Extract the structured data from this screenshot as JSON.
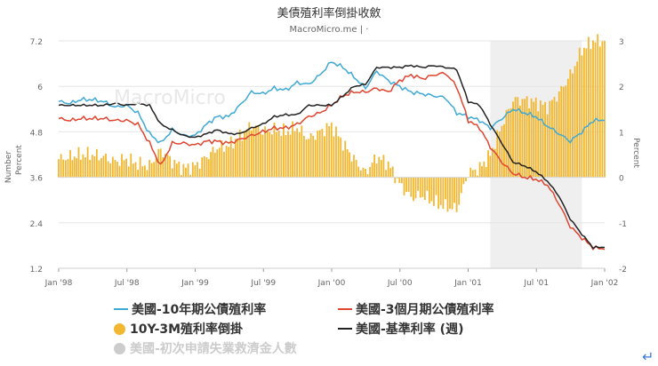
{
  "header": {
    "title": "美債殖利率倒掛收斂",
    "subtitle": "MacroMicro.me | ·",
    "watermark": "MacroMicro"
  },
  "legend": {
    "items": [
      {
        "label": "美國-10年期公債殖利率",
        "color": "#3fa9d5",
        "kind": "line",
        "active": true
      },
      {
        "label": "美國-3個月期公債殖利率",
        "color": "#e0452f",
        "kind": "line",
        "active": true
      },
      {
        "label": "10Y-3M殖利率倒掛",
        "color": "#f2b730",
        "kind": "dot",
        "active": true
      },
      {
        "label": "美國-基準利率 (週)",
        "color": "#222222",
        "kind": "line",
        "active": true
      },
      {
        "label": "美國-初次申請失業救濟金人數",
        "color": "#cccccc",
        "kind": "dot",
        "active": false
      }
    ]
  },
  "chart_data": {
    "type": "line",
    "x_tick_labels": [
      "Jan '98",
      "Jul '98",
      "Jan '99",
      "Jul '99",
      "Jan '00",
      "Jul '00",
      "Jan '01",
      "Jul '01",
      "Jan '02"
    ],
    "left_axis": {
      "labels": [
        "1.2",
        "2.4",
        "3.6",
        "4.8",
        "6",
        "7.2"
      ],
      "title_top": "Number",
      "title_bottom": "Percent",
      "range": [
        1.2,
        7.2
      ]
    },
    "right_axis": {
      "labels": [
        "-2",
        "-1",
        "0",
        "1",
        "2",
        "3"
      ],
      "title": "Percent",
      "range": [
        -2,
        3
      ]
    },
    "shaded_region": {
      "from": "2001-03",
      "to": "2001-11"
    },
    "series": [
      {
        "name": "美國-10年期公債殖利率",
        "axis": "left",
        "color": "#3fa9d5",
        "x": [
          "1998-01",
          "1998-02",
          "1998-03",
          "1998-04",
          "1998-05",
          "1998-06",
          "1998-07",
          "1998-08",
          "1998-09",
          "1998-10",
          "1998-11",
          "1998-12",
          "1999-01",
          "1999-02",
          "1999-03",
          "1999-04",
          "1999-05",
          "1999-06",
          "1999-07",
          "1999-08",
          "1999-09",
          "1999-10",
          "1999-11",
          "1999-12",
          "2000-01",
          "2000-02",
          "2000-03",
          "2000-04",
          "2000-05",
          "2000-06",
          "2000-07",
          "2000-08",
          "2000-09",
          "2000-10",
          "2000-11",
          "2000-12",
          "2001-01",
          "2001-02",
          "2001-03",
          "2001-04",
          "2001-05",
          "2001-06",
          "2001-07",
          "2001-08",
          "2001-09",
          "2001-10",
          "2001-11",
          "2001-12",
          "2002-01"
        ],
        "values": [
          5.6,
          5.55,
          5.65,
          5.65,
          5.6,
          5.45,
          5.5,
          5.3,
          4.75,
          4.5,
          4.85,
          4.7,
          4.7,
          5.0,
          5.2,
          5.2,
          5.5,
          5.85,
          5.8,
          5.95,
          5.9,
          6.1,
          6.05,
          6.3,
          6.65,
          6.5,
          6.25,
          5.95,
          6.4,
          6.15,
          6.0,
          5.85,
          5.8,
          5.75,
          5.7,
          5.3,
          5.2,
          5.1,
          4.9,
          5.15,
          5.4,
          5.3,
          5.2,
          4.95,
          4.75,
          4.55,
          4.8,
          5.1,
          5.1
        ]
      },
      {
        "name": "美國-3個月期公債殖利率",
        "axis": "left",
        "color": "#e0452f",
        "x": [
          "1998-01",
          "1998-02",
          "1998-03",
          "1998-04",
          "1998-05",
          "1998-06",
          "1998-07",
          "1998-08",
          "1998-09",
          "1998-10",
          "1998-11",
          "1998-12",
          "1999-01",
          "1999-02",
          "1999-03",
          "1999-04",
          "1999-05",
          "1999-06",
          "1999-07",
          "1999-08",
          "1999-09",
          "1999-10",
          "1999-11",
          "1999-12",
          "2000-01",
          "2000-02",
          "2000-03",
          "2000-04",
          "2000-05",
          "2000-06",
          "2000-07",
          "2000-08",
          "2000-09",
          "2000-10",
          "2000-11",
          "2000-12",
          "2001-01",
          "2001-02",
          "2001-03",
          "2001-04",
          "2001-05",
          "2001-06",
          "2001-07",
          "2001-08",
          "2001-09",
          "2001-10",
          "2001-11",
          "2001-12",
          "2002-01"
        ],
        "values": [
          5.15,
          5.1,
          5.15,
          5.15,
          5.15,
          5.1,
          5.1,
          5.0,
          4.5,
          3.9,
          4.5,
          4.5,
          4.45,
          4.55,
          4.55,
          4.5,
          4.6,
          4.7,
          4.8,
          4.9,
          4.9,
          5.0,
          5.2,
          5.3,
          5.5,
          5.75,
          5.85,
          5.85,
          5.95,
          5.85,
          6.15,
          6.3,
          6.2,
          6.3,
          6.35,
          6.0,
          5.1,
          4.9,
          4.4,
          4.0,
          3.7,
          3.6,
          3.55,
          3.4,
          2.9,
          2.3,
          2.0,
          1.75,
          1.7
        ]
      },
      {
        "name": "美國-基準利率 (週)",
        "axis": "left",
        "color": "#222222",
        "x": [
          "1998-01",
          "1998-02",
          "1998-03",
          "1998-04",
          "1998-05",
          "1998-06",
          "1998-07",
          "1998-08",
          "1998-09",
          "1998-10",
          "1998-11",
          "1998-12",
          "1999-01",
          "1999-02",
          "1999-03",
          "1999-04",
          "1999-05",
          "1999-06",
          "1999-07",
          "1999-08",
          "1999-09",
          "1999-10",
          "1999-11",
          "1999-12",
          "2000-01",
          "2000-02",
          "2000-03",
          "2000-04",
          "2000-05",
          "2000-06",
          "2000-07",
          "2000-08",
          "2000-09",
          "2000-10",
          "2000-11",
          "2000-12",
          "2001-01",
          "2001-02",
          "2001-03",
          "2001-04",
          "2001-05",
          "2001-06",
          "2001-07",
          "2001-08",
          "2001-09",
          "2001-10",
          "2001-11",
          "2001-12",
          "2002-01"
        ],
        "values": [
          5.5,
          5.5,
          5.5,
          5.5,
          5.5,
          5.55,
          5.5,
          5.55,
          5.5,
          5.0,
          4.85,
          4.7,
          4.65,
          4.75,
          4.85,
          4.75,
          4.75,
          4.9,
          5.0,
          5.2,
          5.25,
          5.25,
          5.5,
          5.5,
          5.5,
          5.75,
          6.0,
          6.05,
          6.5,
          6.5,
          6.5,
          6.55,
          6.5,
          6.55,
          6.5,
          6.45,
          5.6,
          5.5,
          5.0,
          4.5,
          4.0,
          3.9,
          3.75,
          3.5,
          3.1,
          2.5,
          2.1,
          1.75,
          1.75
        ]
      },
      {
        "name": "10Y-3M殖利率倒掛",
        "axis": "right",
        "color": "#f2b730",
        "kind": "bar",
        "x": [
          "1998-01",
          "1998-02",
          "1998-03",
          "1998-04",
          "1998-05",
          "1998-06",
          "1998-07",
          "1998-08",
          "1998-09",
          "1998-10",
          "1998-11",
          "1998-12",
          "1999-01",
          "1999-02",
          "1999-03",
          "1999-04",
          "1999-05",
          "1999-06",
          "1999-07",
          "1999-08",
          "1999-09",
          "1999-10",
          "1999-11",
          "1999-12",
          "2000-01",
          "2000-02",
          "2000-03",
          "2000-04",
          "2000-05",
          "2000-06",
          "2000-07",
          "2000-08",
          "2000-09",
          "2000-10",
          "2000-11",
          "2000-12",
          "2001-01",
          "2001-02",
          "2001-03",
          "2001-04",
          "2001-05",
          "2001-06",
          "2001-07",
          "2001-08",
          "2001-09",
          "2001-10",
          "2001-11",
          "2001-12",
          "2002-01"
        ],
        "values": [
          0.4,
          0.45,
          0.5,
          0.5,
          0.45,
          0.35,
          0.4,
          0.3,
          0.25,
          0.6,
          0.35,
          0.2,
          0.25,
          0.45,
          0.65,
          0.7,
          0.9,
          1.15,
          1.0,
          1.05,
          1.0,
          1.1,
          0.85,
          1.0,
          1.15,
          0.75,
          0.4,
          0.1,
          0.45,
          0.3,
          -0.15,
          -0.45,
          -0.4,
          -0.55,
          -0.65,
          -0.7,
          0.1,
          0.2,
          0.5,
          1.15,
          1.7,
          1.7,
          1.65,
          1.55,
          1.85,
          2.25,
          2.8,
          3.0,
          3.0
        ]
      }
    ]
  }
}
